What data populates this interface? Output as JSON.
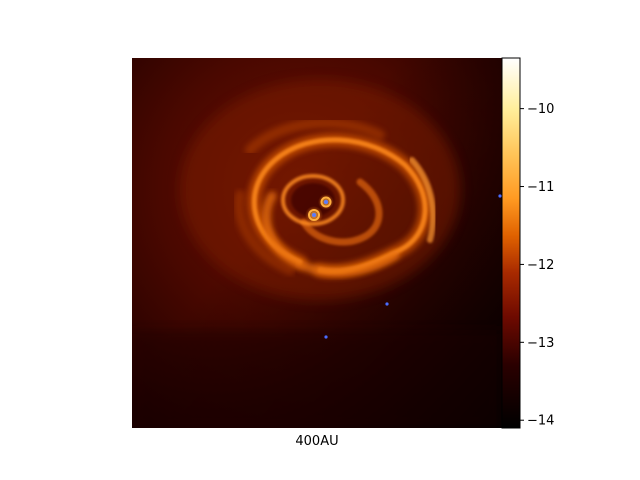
{
  "chart_data": {
    "type": "heatmap",
    "title": "",
    "xlabel": "400AU",
    "ylabel": "",
    "colormap": "afmhot",
    "colorbar": {
      "range": [
        -14.1,
        -9.35
      ],
      "ticks": [
        -10,
        -11,
        -12,
        -13,
        -14
      ],
      "tick_labels": [
        "−10",
        "−11",
        "−12",
        "−13",
        "−14"
      ]
    },
    "background_value": -13.6,
    "features": [
      {
        "name": "spiral-arm",
        "peak_value": -11.6
      },
      {
        "name": "circumbinary-ring",
        "peak_value": -11.3
      },
      {
        "name": "protostar-1",
        "peak_value": -11.0
      },
      {
        "name": "protostar-2",
        "peak_value": -11.0
      }
    ],
    "sink_particles": 5,
    "colors": {
      "sink": "#4a6cff",
      "frame": "#000000"
    }
  }
}
